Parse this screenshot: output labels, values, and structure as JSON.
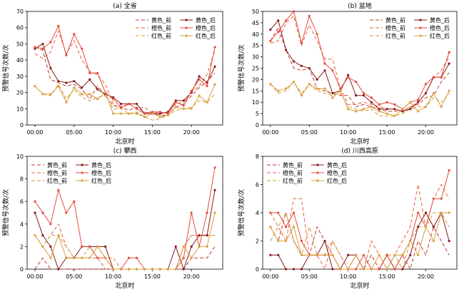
{
  "chart_data": [
    {
      "type": "line",
      "title": "(a) 全省",
      "xlabel": "北京时",
      "ylabel": "预警信号次数/次",
      "xlim": [
        -1,
        24
      ],
      "ylim": [
        0,
        70
      ],
      "xticks": [
        0,
        5,
        10,
        15,
        20
      ],
      "xtick_labels": [
        "00:00",
        "05:00",
        "10:00",
        "15:00",
        "20:00"
      ],
      "yticks": [
        0,
        10,
        20,
        30,
        40,
        50,
        60,
        70
      ],
      "ytick_labels": [
        "0",
        "10",
        "20",
        "30",
        "40",
        "50",
        "60",
        "70"
      ],
      "legend_position": "upper-right",
      "x": [
        0,
        1,
        2,
        3,
        4,
        5,
        6,
        7,
        8,
        9,
        10,
        11,
        12,
        13,
        14,
        15,
        16,
        17,
        18,
        19,
        20,
        21,
        22,
        23
      ],
      "series": [
        {
          "name": "黄色_前",
          "color": "#c0392b",
          "dash": "5,3",
          "marker": false,
          "values": [
            48,
            46,
            28,
            26,
            24,
            25,
            22,
            16,
            24,
            18,
            12,
            11,
            9,
            11,
            8,
            7,
            6,
            6,
            11,
            13,
            18,
            23,
            27,
            32
          ]
        },
        {
          "name": "橙色_前",
          "color": "#e8603c",
          "dash": "5,3",
          "marker": false,
          "values": [
            44,
            41,
            45,
            58,
            44,
            52,
            40,
            33,
            31,
            25,
            13,
            10,
            13,
            10,
            11,
            7,
            8,
            7,
            13,
            14,
            20,
            24,
            31,
            46
          ]
        },
        {
          "name": "红色_前",
          "color": "#d4952a",
          "dash": "5,3",
          "marker": false,
          "values": [
            24,
            19,
            18,
            25,
            16,
            22,
            17,
            15,
            17,
            18,
            10,
            10,
            7,
            8,
            5,
            3,
            4,
            6,
            9,
            10,
            11,
            15,
            14,
            19
          ]
        },
        {
          "name": "黄色_后",
          "color": "#8b1a1a",
          "dash": "",
          "marker": true,
          "values": [
            47,
            50,
            35,
            27,
            26,
            27,
            23,
            28,
            22,
            19,
            17,
            13,
            13,
            13,
            7,
            7,
            7,
            8,
            15,
            15,
            20,
            30,
            26,
            36
          ]
        },
        {
          "name": "橙色_后",
          "color": "#e74c3c",
          "dash": "",
          "marker": true,
          "values": [
            48,
            47,
            51,
            61,
            43,
            56,
            47,
            32,
            32,
            20,
            16,
            11,
            13,
            10,
            7,
            8,
            8,
            7,
            14,
            12,
            21,
            28,
            24,
            48
          ]
        },
        {
          "name": "红色_后",
          "color": "#d9a03f",
          "dash": "",
          "marker": true,
          "values": [
            24,
            19,
            19,
            24,
            14,
            23,
            19,
            19,
            16,
            20,
            7,
            7,
            7,
            7,
            5,
            7,
            5,
            6,
            11,
            10,
            10,
            18,
            14,
            25
          ]
        }
      ]
    },
    {
      "type": "line",
      "title": "(b) 盆地",
      "xlabel": "北京时",
      "ylabel": "预警信号次数/次",
      "xlim": [
        -1,
        24
      ],
      "ylim": [
        0,
        50
      ],
      "xticks": [
        0,
        5,
        10,
        15,
        20
      ],
      "xtick_labels": [
        "00:00",
        "05:00",
        "10:00",
        "15:00",
        "20:00"
      ],
      "yticks": [
        0,
        5,
        10,
        15,
        20,
        25,
        30,
        35,
        40,
        45,
        50
      ],
      "ytick_labels": [
        "0",
        "5",
        "10",
        "15",
        "20",
        "25",
        "30",
        "35",
        "40",
        "45",
        "50"
      ],
      "legend_position": "upper-right",
      "x": [
        0,
        1,
        2,
        3,
        4,
        5,
        6,
        7,
        8,
        9,
        10,
        11,
        12,
        13,
        14,
        15,
        16,
        17,
        18,
        19,
        20,
        21,
        22,
        23
      ],
      "series": [
        {
          "name": "黄色_前",
          "color": "#c0392b",
          "dash": "5,3",
          "marker": false,
          "values": [
            37,
            43,
            33,
            25,
            24,
            25,
            16,
            15,
            14,
            13,
            13,
            8,
            9,
            8,
            7,
            6,
            6,
            6,
            8,
            9,
            12,
            13,
            19,
            23
          ]
        },
        {
          "name": "橙色_前",
          "color": "#e8603c",
          "dash": "5,3",
          "marker": false,
          "values": [
            36,
            37,
            45,
            48,
            35,
            44,
            37,
            29,
            29,
            16,
            9,
            9,
            10,
            9,
            8,
            7,
            7,
            6,
            8,
            10,
            14,
            21,
            24,
            30
          ]
        },
        {
          "name": "红色_前",
          "color": "#d4952a",
          "dash": "5,3",
          "marker": false,
          "values": [
            18,
            14,
            15,
            19,
            14,
            18,
            15,
            14,
            13,
            14,
            8,
            7,
            6,
            7,
            4,
            4,
            4,
            5,
            7,
            8,
            8,
            12,
            10,
            14
          ]
        },
        {
          "name": "黄色_后",
          "color": "#8b1a1a",
          "dash": "",
          "marker": true,
          "values": [
            42,
            46,
            33,
            28,
            26,
            25,
            20,
            24,
            14,
            15,
            22,
            13,
            13,
            10,
            7,
            7,
            7,
            6,
            7,
            10,
            14,
            21,
            21,
            27
          ]
        },
        {
          "name": "橙色_后",
          "color": "#e74c3c",
          "dash": "",
          "marker": true,
          "values": [
            37,
            41,
            46,
            50,
            36,
            48,
            40,
            27,
            24,
            16,
            21,
            19,
            14,
            12,
            9,
            10,
            9,
            7,
            10,
            11,
            18,
            21,
            21,
            32
          ]
        },
        {
          "name": "红色_后",
          "color": "#d9a03f",
          "dash": "",
          "marker": true,
          "values": [
            18,
            15,
            16,
            19,
            13,
            18,
            16,
            16,
            12,
            15,
            7,
            6,
            7,
            8,
            6,
            5,
            4,
            7,
            10,
            6,
            8,
            14,
            8,
            15
          ]
        }
      ]
    },
    {
      "type": "line",
      "title": "(c) 攀西",
      "xlabel": "北京时",
      "ylabel": "预警信号次数/次",
      "xlim": [
        -1,
        24
      ],
      "ylim": [
        0,
        10
      ],
      "xticks": [
        0,
        5,
        10,
        15,
        20
      ],
      "xtick_labels": [
        "00:00",
        "05:00",
        "10:00",
        "15:00",
        "20:00"
      ],
      "yticks": [
        0,
        2,
        4,
        6,
        8,
        10
      ],
      "ytick_labels": [
        "0",
        "2",
        "4",
        "6",
        "8",
        "10"
      ],
      "legend_position": "upper-left",
      "x": [
        0,
        1,
        2,
        3,
        4,
        5,
        6,
        7,
        8,
        9,
        10,
        11,
        12,
        13,
        14,
        15,
        16,
        17,
        18,
        19,
        20,
        21,
        22,
        23
      ],
      "series": [
        {
          "name": "黄色_前",
          "color": "#c0392b",
          "dash": "5,3",
          "marker": false,
          "values": [
            0,
            1,
            0,
            0,
            0,
            0,
            0,
            0,
            0,
            0,
            0,
            0,
            0,
            0,
            0,
            0,
            0,
            0,
            0,
            0,
            1,
            1,
            1,
            2
          ]
        },
        {
          "name": "橙色_前",
          "color": "#e8603c",
          "dash": "5,3",
          "marker": false,
          "values": [
            3,
            2,
            3,
            4,
            2,
            1,
            1,
            1,
            1,
            0,
            0,
            0,
            0,
            0,
            0,
            0,
            0,
            0,
            0,
            2,
            3,
            3,
            3,
            3
          ]
        },
        {
          "name": "红色_前",
          "color": "#d4952a",
          "dash": "5,3",
          "marker": false,
          "values": [
            3,
            2,
            3,
            3,
            2,
            1,
            1,
            2,
            2,
            1,
            1,
            0,
            0,
            0,
            0,
            0,
            0,
            0,
            0,
            2,
            3,
            3,
            3,
            3
          ]
        },
        {
          "name": "黄色_后",
          "color": "#8b1a1a",
          "dash": "",
          "marker": true,
          "values": [
            5,
            3,
            2,
            0,
            1,
            1,
            2,
            2,
            2,
            2,
            0,
            0,
            0,
            0,
            0,
            0,
            0,
            0,
            2,
            0,
            2,
            3,
            3,
            7
          ]
        },
        {
          "name": "橙色_后",
          "color": "#e74c3c",
          "dash": "",
          "marker": true,
          "values": [
            6,
            5,
            4,
            7,
            5,
            6,
            2,
            2,
            1,
            1,
            0,
            0,
            1,
            1,
            0,
            0,
            0,
            0,
            0,
            1,
            5,
            2,
            5,
            9
          ]
        },
        {
          "name": "红色_后",
          "color": "#d9a03f",
          "dash": "",
          "marker": true,
          "values": [
            3,
            2,
            1,
            3,
            1,
            1,
            1,
            1,
            2,
            1,
            0,
            0,
            0,
            0,
            0,
            0,
            0,
            0,
            0,
            2,
            1,
            2,
            2,
            5
          ]
        }
      ]
    },
    {
      "type": "line",
      "title": "(d) 川西高原",
      "xlabel": "北京时",
      "ylabel": "预警信号次数/次",
      "xlim": [
        -1,
        24
      ],
      "ylim": [
        0,
        8
      ],
      "xticks": [
        0,
        5,
        10,
        15,
        20
      ],
      "xtick_labels": [
        "00:00",
        "05:00",
        "10:00",
        "15:00",
        "20:00"
      ],
      "yticks": [
        0,
        2,
        4,
        6,
        8
      ],
      "ytick_labels": [
        "0",
        "2",
        "4",
        "6",
        "8"
      ],
      "legend_position": "upper-left",
      "x": [
        0,
        1,
        2,
        3,
        4,
        5,
        6,
        7,
        8,
        9,
        10,
        11,
        12,
        13,
        14,
        15,
        16,
        17,
        18,
        19,
        20,
        21,
        22,
        23
      ],
      "series": [
        {
          "name": "黄色_前",
          "color": "#c0392b",
          "dash": "5,3",
          "marker": false,
          "values": [
            3,
            2,
            4,
            2,
            1,
            1,
            3,
            2,
            1,
            0,
            0,
            1,
            0,
            1,
            0,
            1,
            0,
            1,
            0,
            2,
            1,
            3,
            2,
            1
          ]
        },
        {
          "name": "橙色_前",
          "color": "#e8603c",
          "dash": "5,3",
          "marker": false,
          "values": [
            4,
            3,
            2,
            5,
            5,
            1,
            1,
            0,
            2,
            1,
            0,
            1,
            0,
            2,
            1,
            0,
            1,
            2,
            3,
            6,
            3,
            5,
            6,
            5
          ]
        },
        {
          "name": "红色_前",
          "color": "#d4952a",
          "dash": "5,3",
          "marker": false,
          "values": [
            2,
            3,
            4,
            2,
            1,
            3,
            1,
            1,
            2,
            1,
            0,
            0,
            0,
            0,
            0,
            1,
            1,
            0,
            2,
            3,
            3,
            4,
            4,
            3
          ]
        },
        {
          "name": "黄色_后",
          "color": "#8b1a1a",
          "dash": "",
          "marker": true,
          "values": [
            1,
            1,
            0,
            0,
            0,
            1,
            1,
            2,
            0,
            0,
            1,
            1,
            0,
            0,
            0,
            1,
            0,
            0,
            1,
            3,
            4,
            3,
            4,
            2
          ]
        },
        {
          "name": "橙色_后",
          "color": "#e74c3c",
          "dash": "",
          "marker": true,
          "values": [
            4,
            4,
            3,
            4,
            2,
            1,
            1,
            1,
            1,
            0,
            0,
            0,
            1,
            0,
            0,
            1,
            0,
            1,
            2,
            4,
            3,
            5,
            5,
            7
          ]
        },
        {
          "name": "红色_后",
          "color": "#d9a03f",
          "dash": "",
          "marker": true,
          "values": [
            3,
            2,
            2,
            3,
            1,
            1,
            1,
            1,
            1,
            0,
            0,
            1,
            0,
            0,
            1,
            0,
            1,
            1,
            2,
            1,
            3,
            2,
            4,
            4
          ]
        }
      ]
    }
  ]
}
